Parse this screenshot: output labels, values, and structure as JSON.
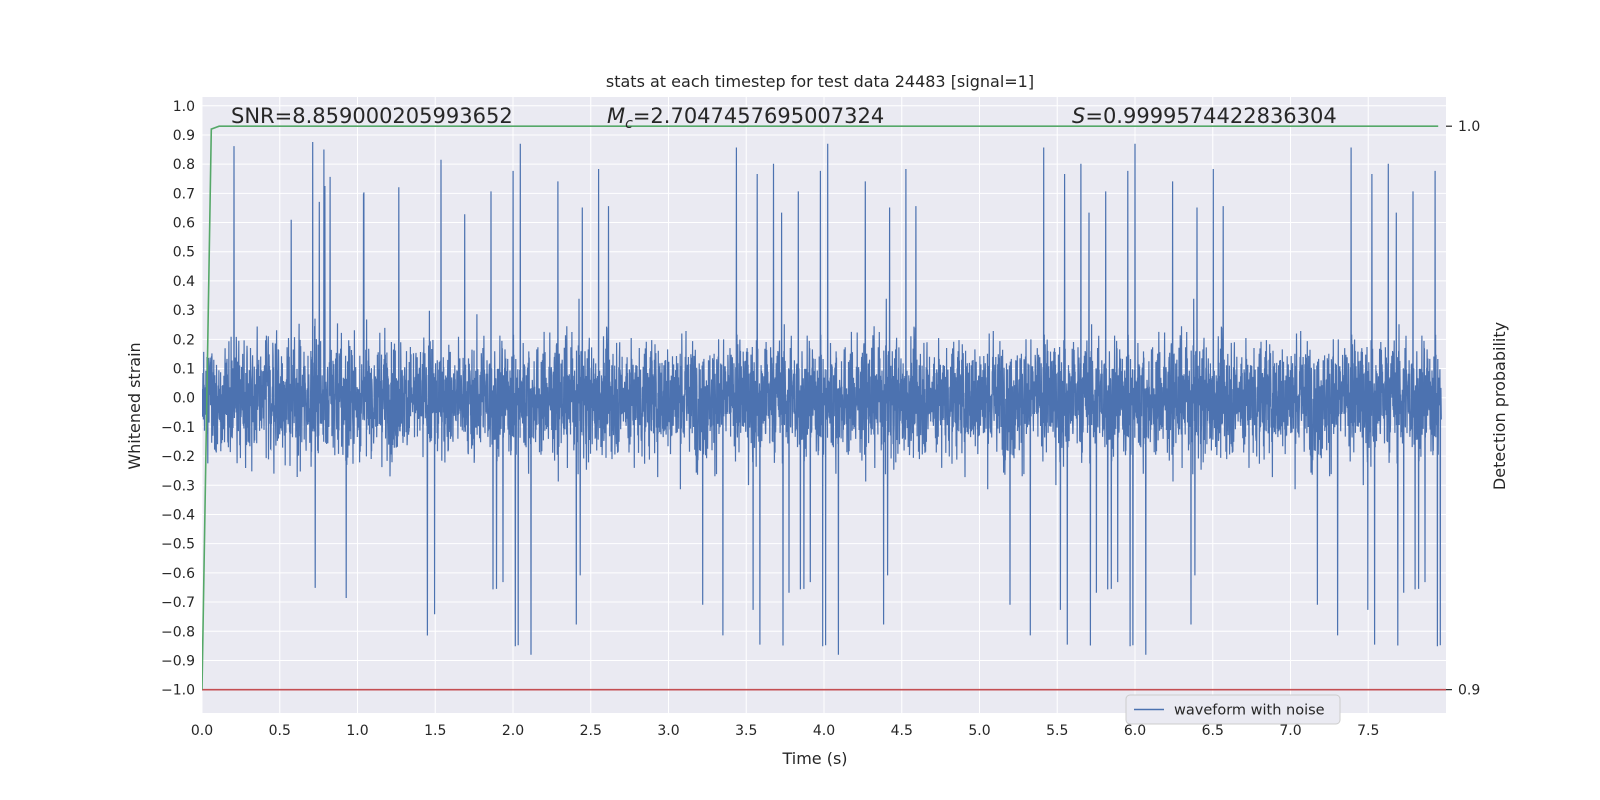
{
  "chart_data": {
    "type": "line",
    "title": "stats at each timestep for test data 24483 [signal=1]",
    "xlabel": "Time (s)",
    "ylabel": "Whitened strain",
    "y2label": "Detection probability",
    "xlim": [
      0.0,
      8.0
    ],
    "ylim": [
      -1.08,
      1.03
    ],
    "y2lim_display": [
      0.9,
      1.0
    ],
    "x_ticks": [
      "0.0",
      "0.5",
      "1.0",
      "1.5",
      "2.0",
      "2.5",
      "3.0",
      "3.5",
      "4.0",
      "4.5",
      "5.0",
      "5.5",
      "6.0",
      "6.5",
      "7.0",
      "7.5"
    ],
    "y_ticks": [
      "1.0",
      "0.9",
      "0.8",
      "0.7",
      "0.6",
      "0.5",
      "0.4",
      "0.3",
      "0.2",
      "0.1",
      "0.0",
      "−0.1",
      "−0.2",
      "−0.3",
      "−0.4",
      "−0.5",
      "−0.6",
      "−0.7",
      "−0.8",
      "−0.9",
      "−1.0"
    ],
    "y2_ticks": [
      "1.0",
      "0.9"
    ],
    "grid": true,
    "legend_position": "lower-right",
    "annotations": {
      "snr": "SNR=8.859000205993652",
      "mc_symbol": "M",
      "mc_sub": "c",
      "mc_value": "=2.7047457695007324",
      "s_symbol": "S",
      "s_value": "=0.9999574422836304"
    },
    "series": [
      {
        "name": "waveform with noise",
        "kind": "noise",
        "color": "#4c72b0",
        "x_range": [
          0.0,
          8.0
        ],
        "typical_amplitude": [
          -0.45,
          0.45
        ],
        "max": 0.92,
        "min": -1.0
      },
      {
        "kind": "probability",
        "color": "#55a868",
        "x": [
          0.0,
          0.06,
          0.11,
          7.95
        ],
        "y": [
          -1.0,
          0.92,
          0.93,
          0.93
        ]
      },
      {
        "kind": "threshold",
        "color": "#c44e52",
        "x": [
          0.0,
          8.0
        ],
        "y": [
          -1.0,
          -1.0
        ]
      }
    ],
    "colors": {
      "plot_background": "#eaeaf2",
      "grid": "#ffffff",
      "noise": "#4c72b0",
      "probability": "#55a868",
      "threshold": "#c44e52"
    }
  }
}
